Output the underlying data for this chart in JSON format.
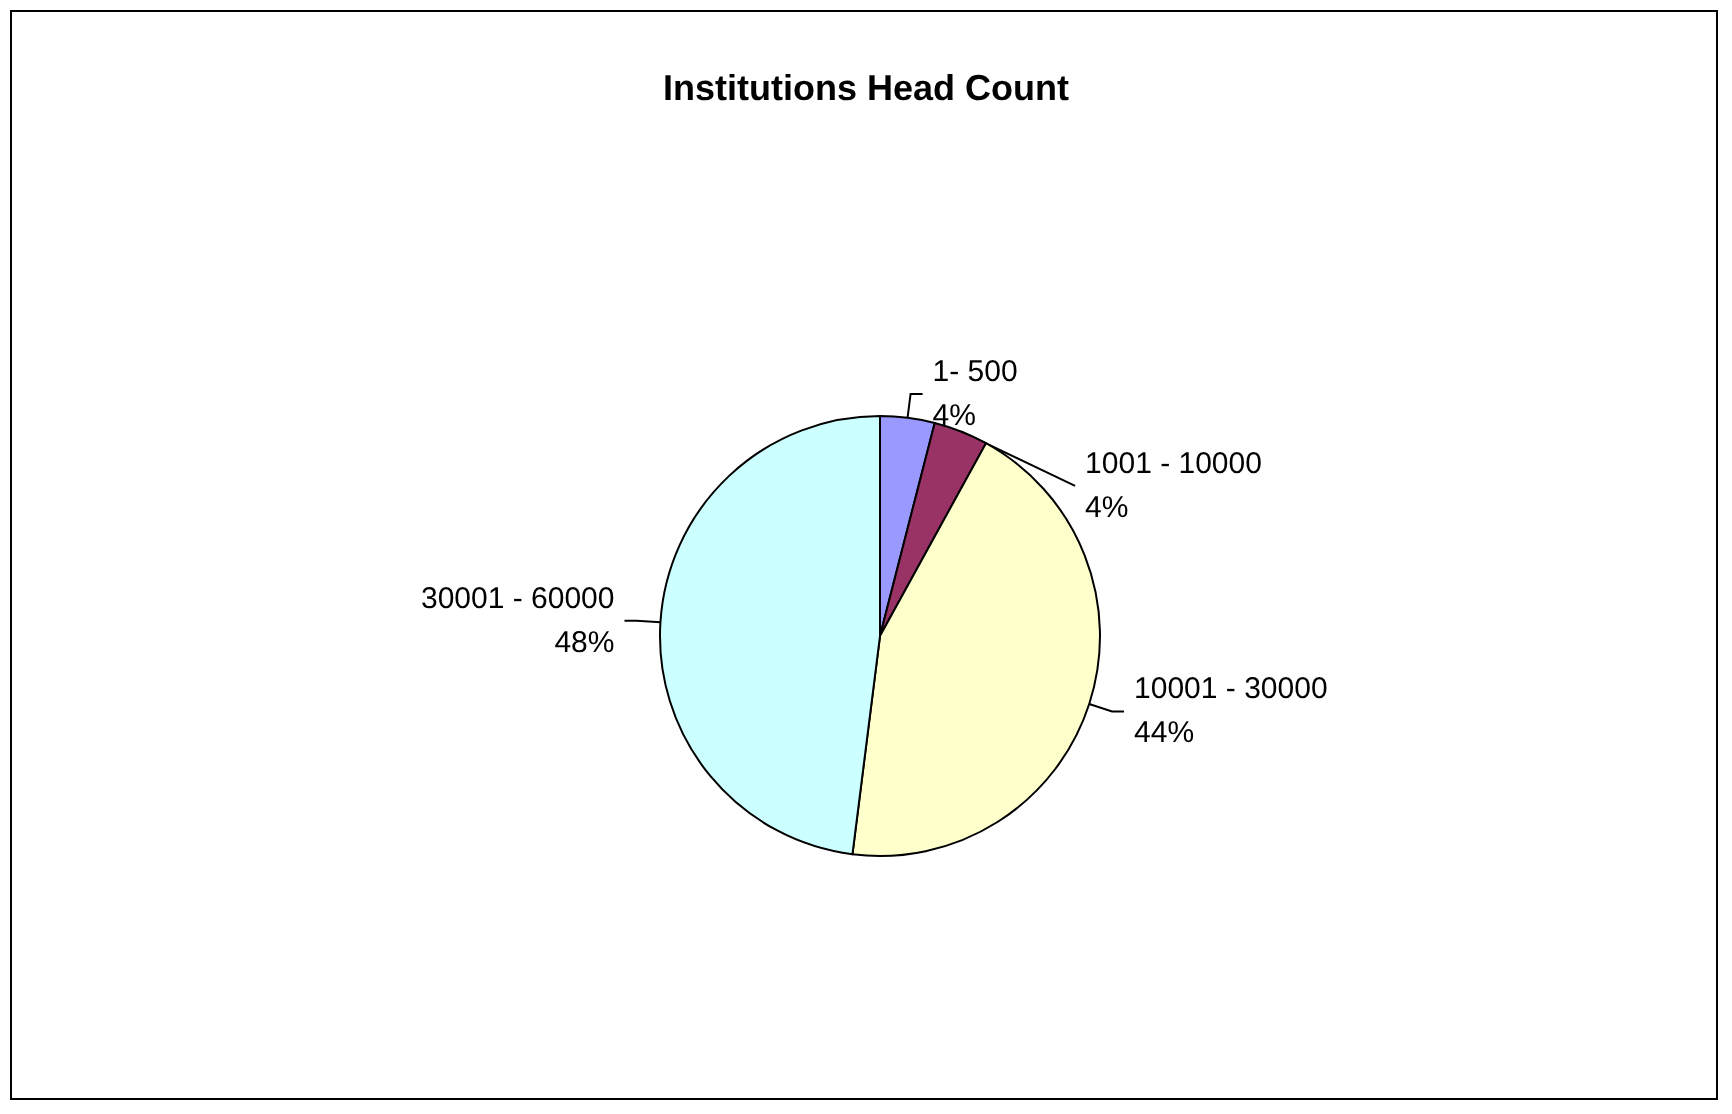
{
  "chart_data": {
    "type": "pie",
    "title": "Institutions Head Count",
    "categories": [
      "1- 500",
      "1001 - 10000",
      "10001 - 30000",
      "30001 - 60000"
    ],
    "values": [
      4,
      4,
      44,
      48
    ],
    "value_labels": [
      "4%",
      "4%",
      "44%",
      "48%"
    ],
    "colors": [
      "#9999ff",
      "#993366",
      "#ffffcc",
      "#ccffff"
    ],
    "legend": false
  }
}
